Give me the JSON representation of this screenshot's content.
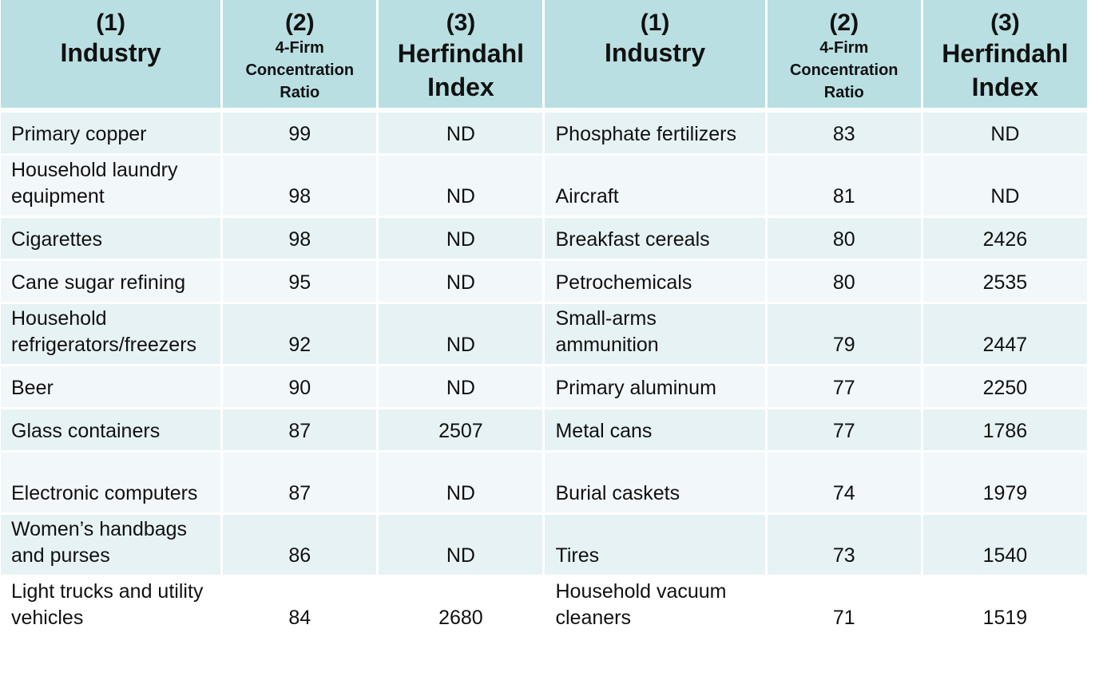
{
  "headers": {
    "col1_num": "(1)",
    "col1_name": "Industry",
    "col2_num": "(2)",
    "col2_name_line1": "4-Firm",
    "col2_name_line2": "Concentration",
    "col2_name_line3": "Ratio",
    "col3_num": "(3)",
    "col3_name_line1": "Herfindahl",
    "col3_name_line2": "Index"
  },
  "rows": [
    {
      "ind1": "Primary copper",
      "cr1": "99",
      "hi1": "ND",
      "ind2": "Phosphate fertilizers",
      "cr2": "83",
      "hi2": "ND"
    },
    {
      "ind1": "Household laundry equipment",
      "cr1": "98",
      "hi1": "ND",
      "ind2": "Aircraft",
      "cr2": "81",
      "hi2": "ND"
    },
    {
      "ind1": "Cigarettes",
      "cr1": "98",
      "hi1": "ND",
      "ind2": "Breakfast cereals",
      "cr2": "80",
      "hi2": "2426"
    },
    {
      "ind1": "Cane sugar refining",
      "cr1": "95",
      "hi1": "ND",
      "ind2": "Petrochemicals",
      "cr2": "80",
      "hi2": "2535"
    },
    {
      "ind1": "Household refrigerators/freezers",
      "cr1": "92",
      "hi1": "ND",
      "ind2": "Small-arms ammunition",
      "cr2": "79",
      "hi2": "2447"
    },
    {
      "ind1": "Beer",
      "cr1": "90",
      "hi1": "ND",
      "ind2": "Primary aluminum",
      "cr2": "77",
      "hi2": "2250"
    },
    {
      "ind1": "Glass containers",
      "cr1": "87",
      "hi1": "2507",
      "ind2": "Metal cans",
      "cr2": "77",
      "hi2": "1786"
    },
    {
      "ind1": "Electronic computers",
      "cr1": "87",
      "hi1": "ND",
      "ind2": "Burial caskets",
      "cr2": "74",
      "hi2": "1979"
    },
    {
      "ind1": "Women’s handbags and purses",
      "cr1": "86",
      "hi1": "ND",
      "ind2": "Tires",
      "cr2": "73",
      "hi2": "1540"
    },
    {
      "ind1": "Light trucks and utility vehicles",
      "cr1": "84",
      "hi1": "2680",
      "ind2": "Household vacuum cleaners",
      "cr2": "71",
      "hi2": "1519"
    }
  ]
}
